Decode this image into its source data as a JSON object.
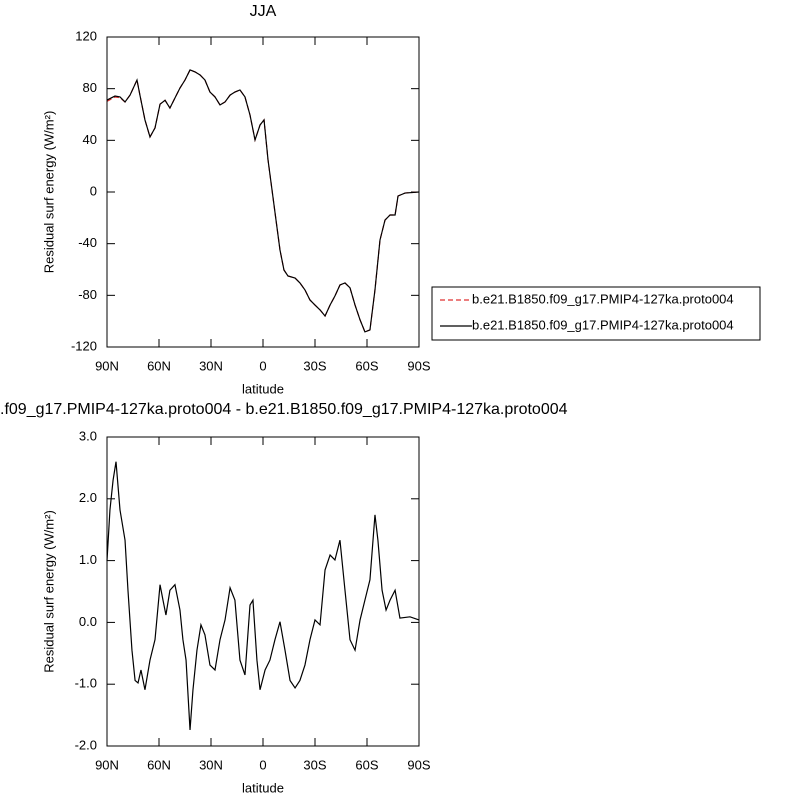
{
  "chart_data": [
    {
      "type": "line",
      "title": "JJA",
      "x_label": "latitude",
      "y_label": "Residual surf energy (W/m²)",
      "xlim": [
        90,
        -90
      ],
      "xticks": [
        {
          "value": 90,
          "label": "90N"
        },
        {
          "value": 60,
          "label": "60N"
        },
        {
          "value": 30,
          "label": "30N"
        },
        0,
        {
          "value": -30,
          "label": "30S"
        },
        {
          "value": -60,
          "label": "60S"
        },
        {
          "value": -90,
          "label": "90S"
        }
      ],
      "ylim": [
        -120,
        120
      ],
      "yticks": [
        120,
        80,
        40,
        0,
        -40,
        -80,
        -120
      ],
      "legend": "right",
      "x": [
        90,
        85.4,
        82.5,
        79.6,
        76.7,
        72.7,
        71.0,
        68.1,
        65.2,
        62.3,
        59.4,
        56.5,
        53.7,
        50.8,
        47.9,
        45.0,
        42.1,
        39.2,
        36.3,
        33.5,
        30.6,
        27.7,
        24.8,
        21.9,
        19.0,
        16.2,
        13.3,
        10.4,
        7.5,
        4.6,
        1.7,
        -0.6,
        -2.9,
        -5.2,
        -7.5,
        -9.8,
        -12.1,
        -14.4,
        -18.5,
        -21.3,
        -24.2,
        -27.1,
        -30.0,
        -32.9,
        -35.8,
        -38.7,
        -41.5,
        -44.4,
        -47.3,
        -50.2,
        -53.1,
        -56.0,
        -58.8,
        -61.7,
        -64.6,
        -67.5,
        -70.4,
        -73.3,
        -76.2,
        -77.9,
        -81.9,
        -90
      ],
      "series": [
        {
          "name": "b.e21.B1850.f09_g17.PMIP4-127ka.proto004",
          "color": "#e03030",
          "dash": true,
          "values": [
            70.2,
            73.5,
            73.0,
            69.7,
            75,
            86.7,
            75,
            55.8,
            42.6,
            49.6,
            68,
            71,
            65,
            72.8,
            80.5,
            86.7,
            94.5,
            93,
            90.6,
            86.7,
            77.4,
            73.6,
            67.4,
            69.7,
            75,
            77.4,
            79,
            73.6,
            59.6,
            40.3,
            51.9,
            55.8,
            24.8,
            1.6,
            -21.7,
            -44.9,
            -60.4,
            -65,
            -66.6,
            -70.4,
            -75.8,
            -83.6,
            -87.5,
            -91.3,
            -96,
            -87.5,
            -80.5,
            -72,
            -70.4,
            -74.2,
            -87.5,
            -99,
            -108.3,
            -106.8,
            -75.8,
            -37.1,
            -21.7,
            -17.8,
            -17.8,
            -3.1,
            -0.8,
            0
          ]
        },
        {
          "name": "b.e21.B1850.f09_g17.PMIP4-127ka.proto004",
          "color": "#000000",
          "dash": false,
          "values": [
            71.2,
            74.3,
            73.6,
            69.7,
            75,
            86.7,
            75,
            55.8,
            42.6,
            49.6,
            68,
            71,
            65,
            72.8,
            80.5,
            86.7,
            94.5,
            93,
            90.6,
            86.7,
            77.4,
            73.6,
            67.4,
            69.7,
            75,
            77.4,
            79,
            73.6,
            59.6,
            40.3,
            51.9,
            55.8,
            24.8,
            1.6,
            -21.7,
            -44.9,
            -60.4,
            -65,
            -66.6,
            -70.4,
            -75.8,
            -83.6,
            -87.5,
            -91.3,
            -96,
            -87.5,
            -80.5,
            -72,
            -70.4,
            -74.2,
            -87.5,
            -99,
            -108.3,
            -106.8,
            -75.8,
            -37.1,
            -21.7,
            -17.8,
            -17.8,
            -3.1,
            -0.8,
            0
          ]
        }
      ]
    },
    {
      "type": "line",
      "title": ".f09_g17.PMIP4-127ka.proto004 - b.e21.B1850.f09_g17.PMIP4-127ka.proto004",
      "x_label": "latitude",
      "y_label": "Residual surf energy (W/m²)",
      "xlim": [
        90,
        -90
      ],
      "xticks": [
        {
          "value": 90,
          "label": "90N"
        },
        {
          "value": 60,
          "label": "60N"
        },
        {
          "value": 30,
          "label": "30N"
        },
        0,
        {
          "value": -30,
          "label": "30S"
        },
        {
          "value": -60,
          "label": "60S"
        },
        {
          "value": -90,
          "label": "90S"
        }
      ],
      "ylim": [
        -2,
        3
      ],
      "yticks": [
        {
          "value": 3,
          "label": "3.0"
        },
        {
          "value": 2,
          "label": "2.0"
        },
        {
          "value": 1,
          "label": "1.0"
        },
        {
          "value": 0,
          "label": "0.0"
        },
        {
          "value": -1,
          "label": "-1.0"
        },
        {
          "value": -2,
          "label": "-2.0"
        }
      ],
      "x": [
        90,
        88.3,
        86.5,
        84.8,
        82.5,
        79.6,
        77.9,
        75.6,
        73.8,
        72.1,
        70.4,
        68.1,
        65.2,
        62.3,
        59.4,
        57.7,
        56.0,
        53.7,
        50.8,
        47.9,
        46.2,
        44.4,
        42.1,
        40.4,
        38.1,
        35.8,
        33.5,
        30.6,
        27.7,
        24.8,
        21.9,
        19.0,
        16.2,
        13.3,
        10.4,
        7.5,
        5.8,
        3.5,
        1.7,
        -1.2,
        -4.0,
        -6.9,
        -9.8,
        -12.7,
        -15.6,
        -18.5,
        -21.3,
        -24.2,
        -27.1,
        -30.0,
        -32.9,
        -35.8,
        -38.7,
        -41.5,
        -44.4,
        -47.3,
        -50.2,
        -53.1,
        -56.0,
        -58.8,
        -61.7,
        -64.6,
        -66.3,
        -68.7,
        -71.0,
        -73.3,
        -76.2,
        -79.0,
        -84.8,
        -90
      ],
      "series": [
        {
          "color": "#000000",
          "dash": false,
          "values": [
            1.0,
            1.82,
            2.3,
            2.6,
            1.82,
            1.33,
            0.52,
            -0.45,
            -0.94,
            -0.98,
            -0.77,
            -1.09,
            -0.61,
            -0.28,
            0.61,
            0.36,
            0.12,
            0.52,
            0.61,
            0.2,
            -0.28,
            -0.61,
            -1.74,
            -1.09,
            -0.45,
            -0.04,
            -0.2,
            -0.69,
            -0.77,
            -0.28,
            0.04,
            0.56,
            0.36,
            -0.61,
            -0.85,
            0.28,
            0.36,
            -0.61,
            -1.09,
            -0.77,
            -0.61,
            -0.28,
            0.01,
            -0.45,
            -0.94,
            -1.06,
            -0.94,
            -0.69,
            -0.28,
            0.04,
            -0.04,
            0.85,
            1.09,
            1.01,
            1.33,
            0.52,
            -0.28,
            -0.45,
            0.04,
            0.36,
            0.69,
            1.74,
            1.33,
            0.52,
            0.2,
            0.36,
            0.52,
            0.07,
            0.09,
            0.04
          ]
        }
      ]
    }
  ]
}
